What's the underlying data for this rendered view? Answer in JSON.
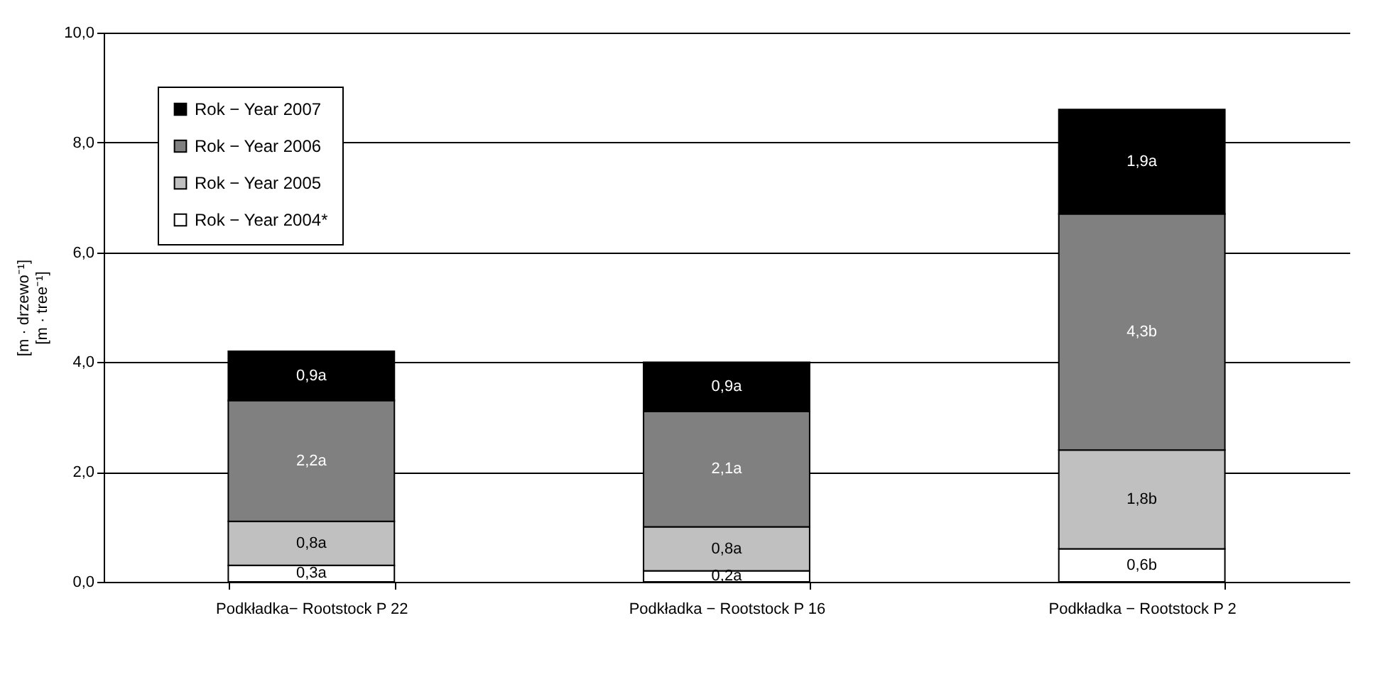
{
  "chart_data": {
    "type": "bar",
    "stacked": true,
    "ylabel": "[m · drzewo⁻¹]\n[m · tree⁻¹]",
    "categories": [
      "Podkładka− Rootstock P 22",
      "Podkładka − Rootstock P 16",
      "Podkładka − Rootstock P 2"
    ],
    "series": [
      {
        "name": "Rok − Year 2004*",
        "color": "#ffffff",
        "values": [
          0.3,
          0.2,
          0.6
        ],
        "value_labels": [
          "0,3a",
          "0,2a",
          "0,6b"
        ]
      },
      {
        "name": "Rok − Year 2005",
        "color": "#c0c0c0",
        "values": [
          0.8,
          0.8,
          1.8
        ],
        "value_labels": [
          "0,8a",
          "0,8a",
          "1,8b"
        ]
      },
      {
        "name": "Rok − Year 2006",
        "color": "#808080",
        "values": [
          2.2,
          2.1,
          4.3
        ],
        "value_labels": [
          "2,2a",
          "2,1a",
          "4,3b"
        ]
      },
      {
        "name": "Rok − Year 2007",
        "color": "#000000",
        "values": [
          0.9,
          0.9,
          1.9
        ],
        "value_labels": [
          "0,9a",
          "0,9a",
          "1,9a"
        ]
      }
    ],
    "ylim": [
      0,
      10
    ],
    "yticks": [
      {
        "value": 0,
        "label": "0,0"
      },
      {
        "value": 2,
        "label": "2,0"
      },
      {
        "value": 4,
        "label": "4,0"
      },
      {
        "value": 6,
        "label": "6,0"
      },
      {
        "value": 8,
        "label": "8,0"
      },
      {
        "value": 10,
        "label": "10,0"
      }
    ],
    "grid": "y",
    "legend": "top left"
  }
}
